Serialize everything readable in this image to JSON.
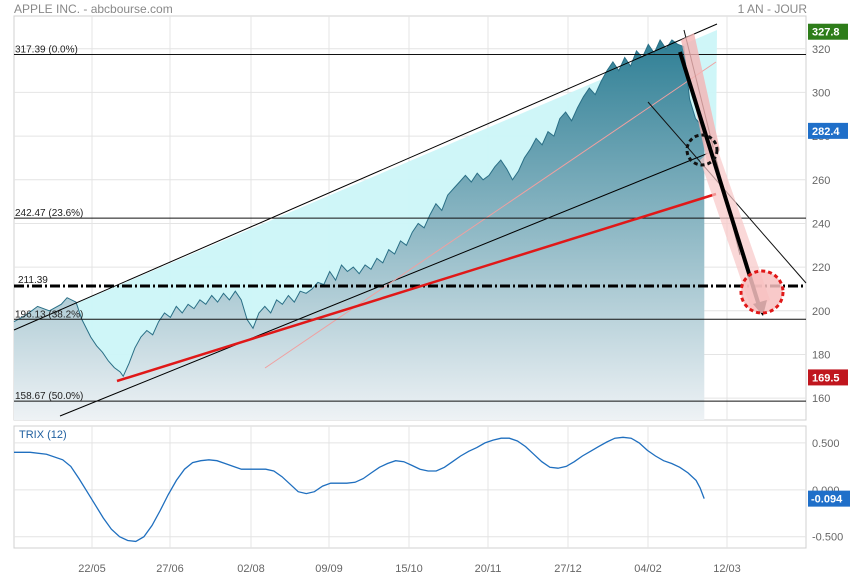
{
  "header": {
    "title": "APPLE INC. - abcbourse.com",
    "period": "1 AN - JOUR"
  },
  "colors": {
    "area_top": "#2f7f95",
    "area_bottom": "#eef2f5",
    "channel_fill": "#ccf6f8",
    "red": "#e01818",
    "black": "#000000",
    "trix_line": "#1f6fbf",
    "tag_green": "#2e7d1a",
    "tag_blue": "#1f6fc9",
    "tag_red": "#c0161e",
    "grid": "#e4e4e4"
  },
  "chart_data": {
    "type": "area",
    "title": "APPLE INC.",
    "y_axis": {
      "min": 150,
      "max": 335,
      "ticks": [
        160,
        180,
        200,
        220,
        240,
        260,
        280,
        300,
        320
      ]
    },
    "x_axis": {
      "ticks": [
        "22/05",
        "27/06",
        "02/08",
        "09/09",
        "15/10",
        "20/11",
        "27/12",
        "04/02",
        "12/03"
      ]
    },
    "price_series": [
      [
        0,
        195
      ],
      [
        4,
        198
      ],
      [
        8,
        202
      ],
      [
        12,
        200
      ],
      [
        16,
        203
      ],
      [
        18,
        206
      ],
      [
        21,
        204
      ],
      [
        23,
        196
      ],
      [
        26,
        188
      ],
      [
        28,
        184
      ],
      [
        30,
        181
      ],
      [
        32,
        177
      ],
      [
        34,
        174
      ],
      [
        36,
        172
      ],
      [
        37,
        170
      ],
      [
        39,
        176
      ],
      [
        41,
        183
      ],
      [
        43,
        188
      ],
      [
        45,
        191
      ],
      [
        47,
        189
      ],
      [
        49,
        195
      ],
      [
        51,
        199
      ],
      [
        53,
        197
      ],
      [
        55,
        202
      ],
      [
        57,
        199
      ],
      [
        59,
        203
      ],
      [
        61,
        201
      ],
      [
        63,
        205
      ],
      [
        65,
        203
      ],
      [
        67,
        207
      ],
      [
        69,
        204
      ],
      [
        71,
        208
      ],
      [
        73,
        205
      ],
      [
        75,
        209
      ],
      [
        77,
        205
      ],
      [
        79,
        196
      ],
      [
        81,
        192
      ],
      [
        83,
        199
      ],
      [
        85,
        202
      ],
      [
        87,
        199
      ],
      [
        89,
        205
      ],
      [
        91,
        203
      ],
      [
        93,
        207
      ],
      [
        95,
        204
      ],
      [
        97,
        209
      ],
      [
        99,
        208
      ],
      [
        101,
        210
      ],
      [
        103,
        213
      ],
      [
        105,
        212
      ],
      [
        107,
        218
      ],
      [
        109,
        214
      ],
      [
        111,
        221
      ],
      [
        113,
        218
      ],
      [
        115,
        220
      ],
      [
        117,
        217
      ],
      [
        119,
        221
      ],
      [
        121,
        219
      ],
      [
        123,
        224
      ],
      [
        125,
        222
      ],
      [
        127,
        228
      ],
      [
        129,
        226
      ],
      [
        131,
        232
      ],
      [
        133,
        230
      ],
      [
        135,
        236
      ],
      [
        137,
        240
      ],
      [
        139,
        238
      ],
      [
        141,
        244
      ],
      [
        143,
        249
      ],
      [
        145,
        246
      ],
      [
        147,
        253
      ],
      [
        149,
        256
      ],
      [
        151,
        259
      ],
      [
        153,
        262
      ],
      [
        155,
        259
      ],
      [
        157,
        263
      ],
      [
        159,
        260
      ],
      [
        161,
        262
      ],
      [
        163,
        266
      ],
      [
        165,
        269
      ],
      [
        167,
        265
      ],
      [
        169,
        260
      ],
      [
        171,
        264
      ],
      [
        173,
        270
      ],
      [
        175,
        274
      ],
      [
        177,
        279
      ],
      [
        179,
        276
      ],
      [
        181,
        282
      ],
      [
        183,
        280
      ],
      [
        185,
        288
      ],
      [
        187,
        291
      ],
      [
        189,
        287
      ],
      [
        191,
        293
      ],
      [
        193,
        298
      ],
      [
        195,
        302
      ],
      [
        197,
        299
      ],
      [
        199,
        305
      ],
      [
        201,
        310
      ],
      [
        203,
        314
      ],
      [
        205,
        310
      ],
      [
        207,
        316
      ],
      [
        209,
        312
      ],
      [
        211,
        319
      ],
      [
        213,
        316
      ],
      [
        215,
        322
      ],
      [
        217,
        318
      ],
      [
        219,
        324
      ],
      [
        221,
        320
      ],
      [
        223,
        324
      ],
      [
        225,
        322
      ],
      [
        227,
        321
      ],
      [
        229,
        297
      ],
      [
        231,
        288
      ],
      [
        233,
        285
      ],
      [
        234,
        280
      ]
    ],
    "fibonacci_levels": [
      {
        "value": 317.39,
        "label": "317.39  (0.0%)"
      },
      {
        "value": 242.47,
        "label": "242.47  (23.6%)"
      },
      {
        "value": 196.13,
        "label": "196.13  (38.2%)"
      },
      {
        "value": 158.67,
        "label": "158.67  (50.0%)"
      }
    ],
    "support_level": {
      "value": 211.39,
      "label": "211.39"
    },
    "price_tags": [
      {
        "value": 327.8,
        "label": "327.8",
        "color": "tag_green"
      },
      {
        "value": 282.4,
        "label": "282.4",
        "color": "tag_blue"
      },
      {
        "value": 169.5,
        "label": "169.5",
        "color": "tag_red"
      }
    ],
    "trix": {
      "title": "TRIX (12)",
      "y_axis": {
        "min": -0.62,
        "max": 0.68,
        "ticks": [
          0.5,
          0.0,
          -0.5
        ],
        "tick_labels": [
          "0.500",
          "0.000",
          "-0.500"
        ]
      },
      "last_label": "-0.094",
      "series": [
        [
          0,
          0.4
        ],
        [
          4,
          0.4
        ],
        [
          8,
          0.38
        ],
        [
          12,
          0.32
        ],
        [
          14,
          0.25
        ],
        [
          16,
          0.12
        ],
        [
          18,
          -0.02
        ],
        [
          20,
          -0.16
        ],
        [
          22,
          -0.3
        ],
        [
          24,
          -0.42
        ],
        [
          26,
          -0.5
        ],
        [
          28,
          -0.54
        ],
        [
          30,
          -0.55
        ],
        [
          32,
          -0.5
        ],
        [
          34,
          -0.38
        ],
        [
          36,
          -0.22
        ],
        [
          38,
          -0.05
        ],
        [
          40,
          0.1
        ],
        [
          42,
          0.22
        ],
        [
          44,
          0.29
        ],
        [
          46,
          0.31
        ],
        [
          48,
          0.32
        ],
        [
          50,
          0.31
        ],
        [
          52,
          0.28
        ],
        [
          54,
          0.25
        ],
        [
          56,
          0.22
        ],
        [
          58,
          0.22
        ],
        [
          60,
          0.22
        ],
        [
          62,
          0.22
        ],
        [
          64,
          0.2
        ],
        [
          66,
          0.14
        ],
        [
          68,
          0.06
        ],
        [
          70,
          -0.02
        ],
        [
          72,
          -0.04
        ],
        [
          74,
          -0.02
        ],
        [
          76,
          0.04
        ],
        [
          78,
          0.07
        ],
        [
          80,
          0.07
        ],
        [
          82,
          0.07
        ],
        [
          84,
          0.08
        ],
        [
          86,
          0.12
        ],
        [
          88,
          0.18
        ],
        [
          90,
          0.24
        ],
        [
          92,
          0.28
        ],
        [
          94,
          0.31
        ],
        [
          96,
          0.3
        ],
        [
          98,
          0.26
        ],
        [
          100,
          0.22
        ],
        [
          102,
          0.2
        ],
        [
          104,
          0.2
        ],
        [
          106,
          0.24
        ],
        [
          108,
          0.3
        ],
        [
          110,
          0.36
        ],
        [
          112,
          0.41
        ],
        [
          114,
          0.45
        ],
        [
          116,
          0.5
        ],
        [
          118,
          0.53
        ],
        [
          120,
          0.55
        ],
        [
          122,
          0.55
        ],
        [
          124,
          0.52
        ],
        [
          126,
          0.46
        ],
        [
          128,
          0.38
        ],
        [
          130,
          0.3
        ],
        [
          132,
          0.24
        ],
        [
          134,
          0.23
        ],
        [
          136,
          0.25
        ],
        [
          138,
          0.3
        ],
        [
          140,
          0.36
        ],
        [
          142,
          0.41
        ],
        [
          144,
          0.46
        ],
        [
          146,
          0.51
        ],
        [
          148,
          0.55
        ],
        [
          150,
          0.56
        ],
        [
          152,
          0.55
        ],
        [
          154,
          0.5
        ],
        [
          156,
          0.42
        ],
        [
          158,
          0.36
        ],
        [
          160,
          0.31
        ],
        [
          162,
          0.28
        ],
        [
          164,
          0.24
        ],
        [
          166,
          0.18
        ],
        [
          168,
          0.1
        ],
        [
          169,
          0.02
        ],
        [
          170,
          -0.094
        ]
      ]
    }
  }
}
